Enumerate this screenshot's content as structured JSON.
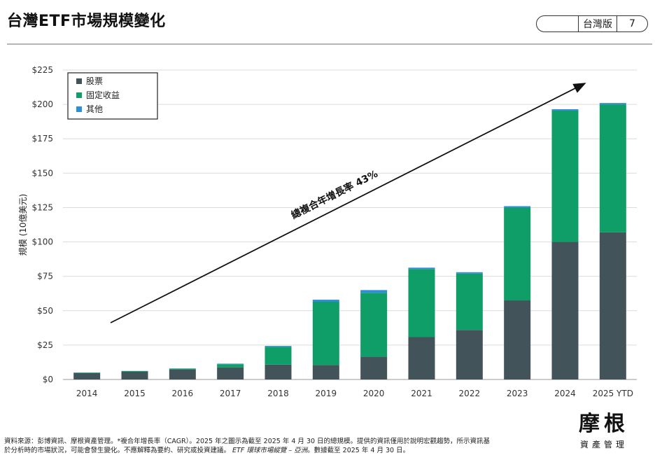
{
  "header": {
    "title": "台灣ETF市場規模變化",
    "region_label": "台灣版",
    "page_number": "7"
  },
  "chart_data": {
    "type": "bar",
    "stacked": true,
    "categories": [
      "2014",
      "2015",
      "2016",
      "2017",
      "2018",
      "2019",
      "2020",
      "2021",
      "2022",
      "2023",
      "2024",
      "2025 YTD"
    ],
    "series": [
      {
        "name": "股票",
        "color": "#43535a",
        "values": [
          4.6,
          5.6,
          7.3,
          8.7,
          10.8,
          10.5,
          16.5,
          30.8,
          36.0,
          57.5,
          100.0,
          107.0
        ]
      },
      {
        "name": "固定收益",
        "color": "#0f9d68",
        "values": [
          0.4,
          0.5,
          0.6,
          2.4,
          13.0,
          46.0,
          46.5,
          49.5,
          41.0,
          67.5,
          95.5,
          93.0
        ]
      },
      {
        "name": "其他",
        "color": "#2e8fd6",
        "values": [
          0.1,
          0.1,
          0.1,
          0.4,
          0.6,
          1.5,
          2.0,
          1.0,
          1.0,
          1.0,
          1.0,
          1.0
        ]
      }
    ],
    "ylabel": "規模 (10億美元)",
    "ylim": [
      0,
      225
    ],
    "yticks": [
      0,
      25,
      50,
      75,
      100,
      125,
      150,
      175,
      200,
      225
    ],
    "ytick_labels": [
      "$0",
      "$25",
      "$50",
      "$75",
      "$100",
      "$125",
      "$150",
      "$175",
      "$200",
      "$225"
    ],
    "grid": true,
    "legend_position": "top-left",
    "annotation": "總複合年增長率 43%"
  },
  "footnote": {
    "line1": "資料來源：彭博資訊、摩根資產管理。*複合年增長率（CAGR）。2025 年之圖示為截至 2025 年 4 月 30 日的總規模。提供的資訊僅用於說明宏觀趨勢，所示資訊基",
    "line2_a": "於分析時的市場狀況，可能會發生變化。不應解釋為要約、研究或投資建議。",
    "line2_b": "ETF 環球市場縱覽 – 亞洲",
    "line2_c": "。數據截至 2025 年 4 月 30 日。"
  },
  "logo": {
    "mark": "摩根",
    "sub": "資產管理"
  }
}
